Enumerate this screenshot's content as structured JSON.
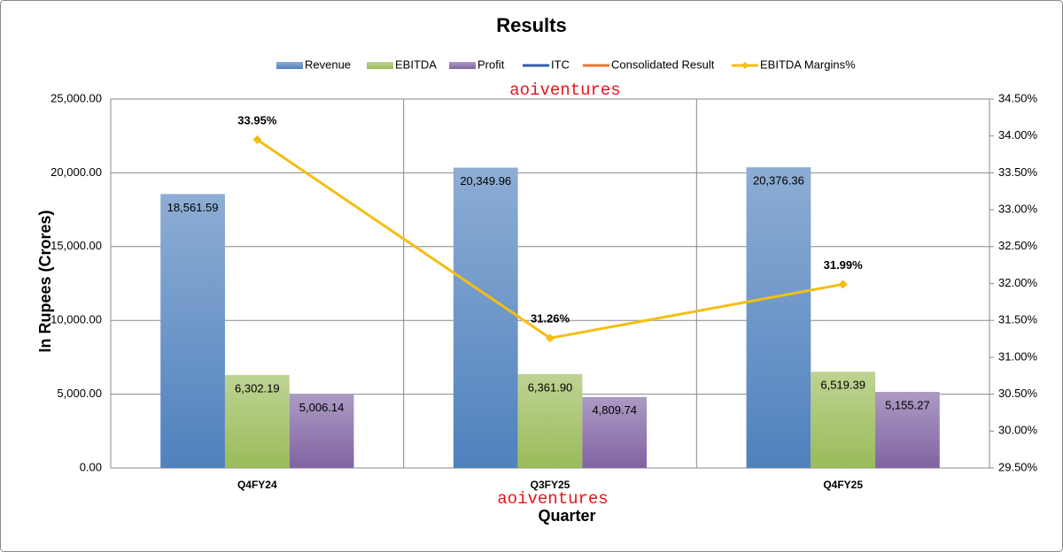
{
  "chart_data": {
    "type": "bar",
    "title": "Results",
    "x_label": "Quarter",
    "y_label": "In Rupees (Crores)",
    "annotations": [
      "aoiventures",
      "aoiventures"
    ],
    "categories": [
      "Q4FY24",
      "Q3FY25",
      "Q4FY25"
    ],
    "series": [
      {
        "name": "Revenue",
        "type": "bar",
        "color": "#4f81bd",
        "values": [
          18561.59,
          20349.96,
          20376.36
        ],
        "value_labels": [
          "18,561.59",
          "20,349.96",
          "20,376.36"
        ]
      },
      {
        "name": "EBITDA",
        "type": "bar",
        "color": "#9bbb59",
        "values": [
          6302.19,
          6361.9,
          6519.39
        ],
        "value_labels": [
          "6,302.19",
          "6,361.90",
          "6,519.39"
        ]
      },
      {
        "name": "Profit",
        "type": "bar",
        "color": "#8064a2",
        "values": [
          5006.14,
          4809.74,
          5155.27
        ],
        "value_labels": [
          "5,006.14",
          "4,809.74",
          "5,155.27"
        ]
      },
      {
        "name": "ITC",
        "type": "line",
        "color": "#2e5fa8",
        "values": [
          null,
          null,
          null
        ]
      },
      {
        "name": "Consolidated Result",
        "type": "line",
        "color": "#e8772e",
        "values": [
          null,
          null,
          null
        ]
      },
      {
        "name": "EBITDA Margins%",
        "type": "line",
        "marker": "diamond",
        "axis": "y2",
        "color": "#f5be12",
        "values": [
          33.95,
          31.26,
          31.99
        ],
        "value_labels": [
          "33.95%",
          "31.26%",
          "31.99%"
        ]
      }
    ],
    "ylim": [
      0,
      25000
    ],
    "yticks": [
      {
        "value": 0,
        "label": "0.00"
      },
      {
        "value": 5000,
        "label": "5,000.00"
      },
      {
        "value": 10000,
        "label": "10,000.00"
      },
      {
        "value": 15000,
        "label": "15,000.00"
      },
      {
        "value": 20000,
        "label": "20,000.00"
      },
      {
        "value": 25000,
        "label": "25,000.00"
      }
    ],
    "y2lim": [
      29.5,
      34.5
    ],
    "y2ticks": [
      {
        "value": 29.5,
        "label": "29.50%"
      },
      {
        "value": 30,
        "label": "30.00%"
      },
      {
        "value": 30.5,
        "label": "30.50%"
      },
      {
        "value": 31,
        "label": "31.00%"
      },
      {
        "value": 31.5,
        "label": "31.50%"
      },
      {
        "value": 32,
        "label": "32.00%"
      },
      {
        "value": 32.5,
        "label": "32.50%"
      },
      {
        "value": 33,
        "label": "33.00%"
      },
      {
        "value": 33.5,
        "label": "33.50%"
      },
      {
        "value": 34,
        "label": "34.00%"
      },
      {
        "value": 34.5,
        "label": "34.50%"
      }
    ],
    "grid": true,
    "legend": "top"
  }
}
